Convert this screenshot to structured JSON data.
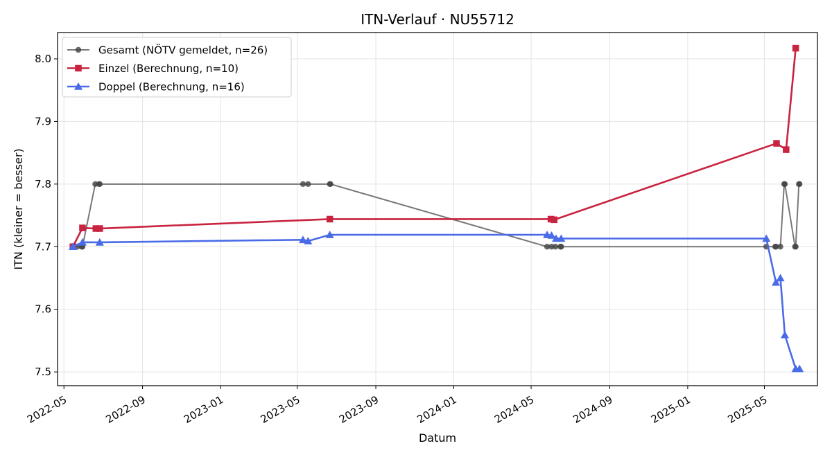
{
  "chart_data": {
    "type": "line",
    "title": "ITN-Verlauf · NU55712",
    "xlabel": "Datum",
    "ylabel": "ITN  (kleiner = besser)",
    "x_type": "date",
    "xlim": [
      "2022-04-21",
      "2025-07-23"
    ],
    "ylim": [
      7.478,
      8.042
    ],
    "x_ticks": [
      "2022-05",
      "2022-09",
      "2023-01",
      "2023-05",
      "2023-09",
      "2024-01",
      "2024-05",
      "2024-09",
      "2025-01",
      "2025-05"
    ],
    "y_ticks": [
      7.5,
      7.6,
      7.7,
      7.8,
      7.9,
      8.0
    ],
    "y_tick_labels": [
      "7.5",
      "7.6",
      "7.7",
      "7.8",
      "7.9",
      "8.0"
    ],
    "grid": true,
    "legend_position": "upper-left",
    "series": [
      {
        "name": "Gesamt (NÖTV gemeldet, n=26)",
        "color": "#444444",
        "marker": "circle",
        "points": [
          {
            "x": "2022-05-15",
            "y": 7.7
          },
          {
            "x": "2022-05-22",
            "y": 7.7
          },
          {
            "x": "2022-05-29",
            "y": 7.7
          },
          {
            "x": "2022-05-30",
            "y": 7.7
          },
          {
            "x": "2022-06-19",
            "y": 7.8
          },
          {
            "x": "2022-06-25",
            "y": 7.8
          },
          {
            "x": "2022-06-26",
            "y": 7.8
          },
          {
            "x": "2023-05-10",
            "y": 7.8
          },
          {
            "x": "2023-05-18",
            "y": 7.8
          },
          {
            "x": "2023-06-21",
            "y": 7.8
          },
          {
            "x": "2023-06-22",
            "y": 7.8
          },
          {
            "x": "2024-05-26",
            "y": 7.7
          },
          {
            "x": "2024-06-02",
            "y": 7.7
          },
          {
            "x": "2024-06-08",
            "y": 7.7
          },
          {
            "x": "2024-06-16",
            "y": 7.7
          },
          {
            "x": "2024-06-17",
            "y": 7.7
          },
          {
            "x": "2025-05-04",
            "y": 7.7
          },
          {
            "x": "2025-05-18",
            "y": 7.7
          },
          {
            "x": "2025-05-19",
            "y": 7.7
          },
          {
            "x": "2025-05-26",
            "y": 7.7
          },
          {
            "x": "2025-06-01",
            "y": 7.8
          },
          {
            "x": "2025-06-02",
            "y": 7.8
          },
          {
            "x": "2025-06-18",
            "y": 7.7
          },
          {
            "x": "2025-06-19",
            "y": 7.7
          },
          {
            "x": "2025-06-24",
            "y": 7.8
          },
          {
            "x": "2025-06-25",
            "y": 7.8
          }
        ]
      },
      {
        "name": "Einzel (Berechnung, n=10)",
        "color": "#c8233f",
        "marker": "square",
        "points": [
          {
            "x": "2022-05-15",
            "y": 7.7
          },
          {
            "x": "2022-05-30",
            "y": 7.73
          },
          {
            "x": "2022-06-20",
            "y": 7.729
          },
          {
            "x": "2022-06-26",
            "y": 7.729
          },
          {
            "x": "2023-06-21",
            "y": 7.744
          },
          {
            "x": "2024-06-01",
            "y": 7.744
          },
          {
            "x": "2024-06-06",
            "y": 7.743
          },
          {
            "x": "2025-05-20",
            "y": 7.865
          },
          {
            "x": "2025-06-04",
            "y": 7.855
          },
          {
            "x": "2025-06-19",
            "y": 8.017
          }
        ]
      },
      {
        "name": "Doppel (Berechnung, n=16)",
        "color": "#4a6be8",
        "marker": "triangle",
        "points": [
          {
            "x": "2022-05-15",
            "y": 7.7
          },
          {
            "x": "2022-05-30",
            "y": 7.707
          },
          {
            "x": "2022-06-26",
            "y": 7.707
          },
          {
            "x": "2023-05-10",
            "y": 7.711
          },
          {
            "x": "2023-05-18",
            "y": 7.709
          },
          {
            "x": "2023-06-21",
            "y": 7.719
          },
          {
            "x": "2024-05-26",
            "y": 7.719
          },
          {
            "x": "2024-06-02",
            "y": 7.718
          },
          {
            "x": "2024-06-09",
            "y": 7.713
          },
          {
            "x": "2024-06-17",
            "y": 7.713
          },
          {
            "x": "2025-05-04",
            "y": 7.713
          },
          {
            "x": "2025-05-19",
            "y": 7.643
          },
          {
            "x": "2025-05-26",
            "y": 7.65
          },
          {
            "x": "2025-06-02",
            "y": 7.559
          },
          {
            "x": "2025-06-19",
            "y": 7.505
          },
          {
            "x": "2025-06-25",
            "y": 7.505
          }
        ]
      }
    ]
  }
}
